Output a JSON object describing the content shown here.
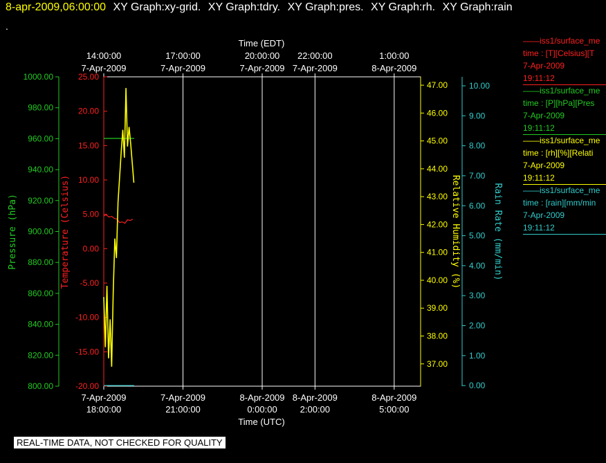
{
  "header": {
    "timestamp": "8-apr-2009,06:00:00",
    "tabs": [
      "XY Graph:xy-grid.",
      "XY Graph:tdry.",
      "XY Graph:pres.",
      "XY Graph:rh.",
      "XY Graph:rain"
    ],
    "dot": "."
  },
  "legend": [
    {
      "name": "——iss1/surface_me",
      "desc": "time : [T][Celsius][T",
      "date": "7-Apr-2009",
      "time": "19:11:12",
      "color": "#ff2020"
    },
    {
      "name": "——iss1/surface_me",
      "desc": "time : [P][hPa][Pres",
      "date": "7-Apr-2009",
      "time": "19:11:12",
      "color": "#22cc22"
    },
    {
      "name": "——iss1/surface_me",
      "desc": "time : [rh][%][Relati",
      "date": "7-Apr-2009",
      "time": "19:11:12",
      "color": "#ffff00"
    },
    {
      "name": "——iss1/surface_me",
      "desc": "time : [rain][mm/min",
      "date": "7-Apr-2009",
      "time": "19:11:12",
      "color": "#33cccc"
    }
  ],
  "quality_note": "REAL-TIME DATA, NOT CHECKED FOR QUALITY",
  "chart_data": {
    "type": "line",
    "x_top": {
      "label": "Time (EDT)",
      "ticks": [
        {
          "x": 0,
          "l1": "14:00:00",
          "l2": "7-Apr-2009"
        },
        {
          "x": 3,
          "l1": "17:00:00",
          "l2": "7-Apr-2009"
        },
        {
          "x": 6,
          "l1": "20:00:00",
          "l2": "7-Apr-2009"
        },
        {
          "x": 8,
          "l1": "22:00:00",
          "l2": "7-Apr-2009"
        },
        {
          "x": 11,
          "l1": "1:00:00",
          "l2": "8-Apr-2009"
        }
      ]
    },
    "x_bottom": {
      "label": "Time (UTC)",
      "ticks": [
        {
          "x": 0,
          "l1": "7-Apr-2009",
          "l2": "18:00:00"
        },
        {
          "x": 3,
          "l1": "7-Apr-2009",
          "l2": "21:00:00"
        },
        {
          "x": 6,
          "l1": "8-Apr-2009",
          "l2": "0:00:00"
        },
        {
          "x": 8,
          "l1": "8-Apr-2009",
          "l2": "2:00:00"
        },
        {
          "x": 11,
          "l1": "8-Apr-2009",
          "l2": "5:00:00"
        }
      ]
    },
    "xlim": [
      0,
      12
    ],
    "grid_x": [
      3,
      6,
      8,
      11
    ],
    "axes": {
      "pressure": {
        "label": "Pressure (hPa)",
        "color": "#22cc22",
        "range": [
          800,
          1000
        ],
        "ticks": [
          "800.00",
          "820.00",
          "840.00",
          "860.00",
          "880.00",
          "900.00",
          "920.00",
          "940.00",
          "960.00",
          "980.00",
          "1000.00"
        ]
      },
      "temperature": {
        "label": "Temperature (Celsius)",
        "color": "#ff2020",
        "range": [
          -20,
          25
        ],
        "ticks": [
          "-20.00",
          "-15.00",
          "-10.00",
          "-5.00",
          "0.00",
          "5.00",
          "10.00",
          "15.00",
          "20.00",
          "25.00"
        ]
      },
      "rh": {
        "label": "Relative Humidity (%)",
        "color": "#ffff00",
        "range": [
          36.2,
          47.3
        ],
        "ticks": [
          "37.00",
          "38.00",
          "39.00",
          "40.00",
          "41.00",
          "42.00",
          "43.00",
          "44.00",
          "45.00",
          "46.00",
          "47.00"
        ]
      },
      "rain": {
        "label": "Rain Rate (mm/min)",
        "color": "#33cccc",
        "range": [
          -0.02,
          10.3
        ],
        "ticks": [
          "0.00",
          "1.00",
          "2.00",
          "3.00",
          "4.00",
          "5.00",
          "6.00",
          "7.00",
          "8.00",
          "9.00",
          "10.00"
        ]
      }
    },
    "series": [
      {
        "name": "T",
        "axis": "temperature",
        "color": "#ff2020",
        "x": [
          0.0,
          0.1,
          0.2,
          0.3,
          0.4,
          0.5,
          0.6,
          0.7,
          0.8,
          0.9,
          1.0,
          1.1
        ],
        "y": [
          4.8,
          4.9,
          4.6,
          4.7,
          4.4,
          4.3,
          3.8,
          3.9,
          3.7,
          4.2,
          4.1,
          4.3
        ]
      },
      {
        "name": "P",
        "axis": "pressure",
        "color": "#22cc22",
        "x": [
          0.0,
          1.15
        ],
        "y": [
          960.2,
          960.2
        ]
      },
      {
        "name": "rh",
        "axis": "rh",
        "color": "#ffff00",
        "x": [
          0.0,
          0.06,
          0.12,
          0.18,
          0.24,
          0.3,
          0.36,
          0.42,
          0.48,
          0.54,
          0.6,
          0.66,
          0.72,
          0.78,
          0.84,
          0.9,
          0.96,
          1.02,
          1.08,
          1.14
        ],
        "y": [
          39.4,
          37.6,
          39.8,
          37.2,
          38.6,
          36.9,
          39.6,
          41.5,
          40.8,
          42.8,
          43.7,
          44.6,
          45.4,
          44.4,
          46.9,
          44.8,
          45.5,
          44.9,
          44.2,
          43.5
        ]
      },
      {
        "name": "rain",
        "axis": "rain",
        "color": "#33cccc",
        "x": [
          0.0,
          1.15
        ],
        "y": [
          0.0,
          0.0
        ]
      }
    ]
  }
}
